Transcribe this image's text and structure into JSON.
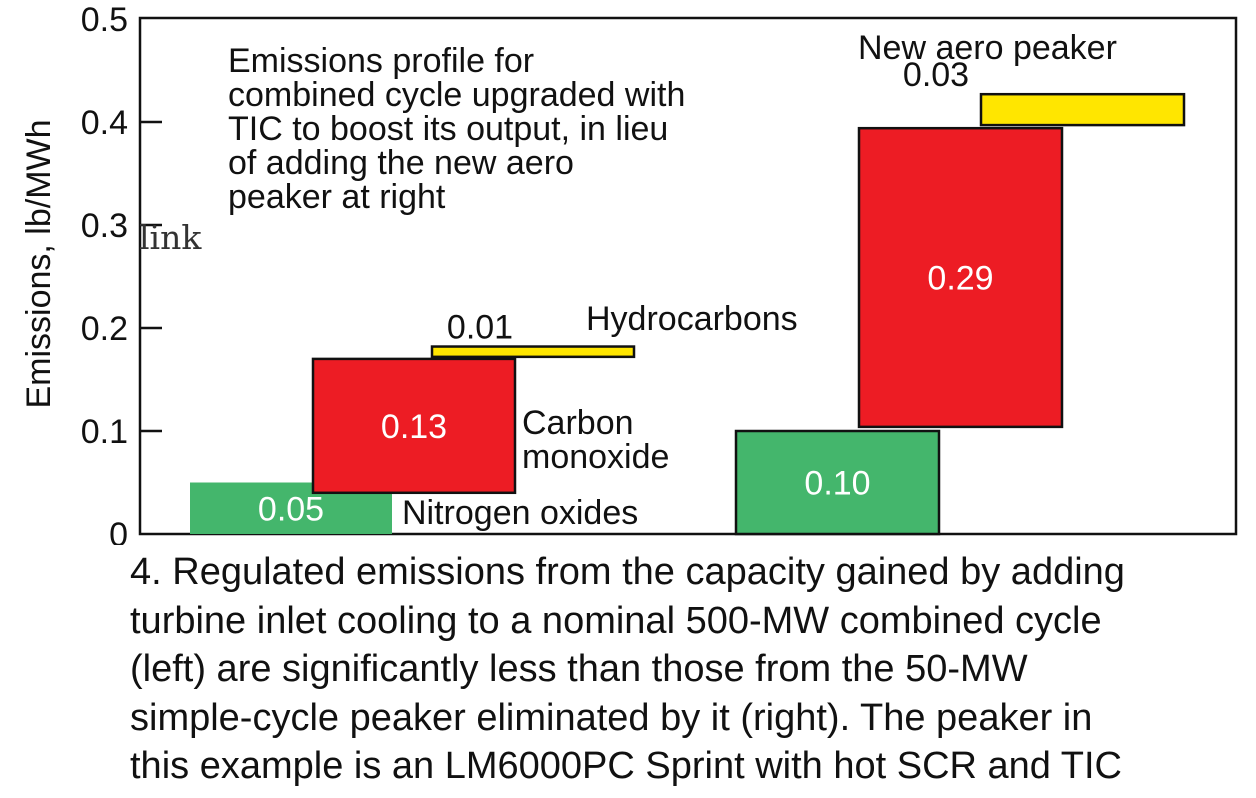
{
  "chart_data": {
    "type": "bar",
    "subtype": "waterfall",
    "ylabel": "Emissions, lb/MWh",
    "ylim": [
      0,
      0.5
    ],
    "yticks": [
      "0",
      "0.1",
      "0.2",
      "0.3",
      "0.4",
      "0.5"
    ],
    "grid": false,
    "stray_text": "link",
    "groups": [
      {
        "label_lines": [
          "Emissions profile for",
          "combined cycle upgraded with",
          "TIC to boost its output, in lieu",
          "of adding the new aero",
          "peaker at right"
        ],
        "segments": [
          {
            "series": "Nitrogen oxides",
            "value": 0.05,
            "base": 0.0,
            "value_label": "0.05",
            "color": "#44b66c"
          },
          {
            "series": "Carbon monoxide",
            "value": 0.13,
            "base": 0.04,
            "value_label": "0.13",
            "color": "#ed1c24"
          },
          {
            "series": "Hydrocarbons",
            "value": 0.01,
            "base": 0.172,
            "value_label": "0.01",
            "color": "#ffe600"
          }
        ]
      },
      {
        "label_lines": [
          "New aero peaker"
        ],
        "segments": [
          {
            "series": "Nitrogen oxides",
            "value": 0.1,
            "base": 0.0,
            "value_label": "0.10",
            "color": "#44b66c"
          },
          {
            "series": "Carbon monoxide",
            "value": 0.29,
            "base": 0.104,
            "value_label": "0.29",
            "color": "#ed1c24"
          },
          {
            "series": "Hydrocarbons",
            "value": 0.03,
            "base": 0.397,
            "value_label": "0.03",
            "color": "#ffe600"
          }
        ]
      }
    ],
    "annotations": {
      "hydrocarbons": "Hydrocarbons",
      "carbon_monoxide": [
        "Carbon",
        "monoxide"
      ],
      "nitrogen_oxides": "Nitrogen oxides"
    }
  },
  "caption_lines": [
    "4. Regulated emissions from the capacity gained by adding",
    "turbine inlet cooling to a nominal 500-MW combined cycle",
    "(left) are significantly less than those from the 50-MW",
    "simple-cycle peaker eliminated by it (right). The peaker in",
    "this example is an LM6000PC Sprint with hot SCR and TIC"
  ]
}
